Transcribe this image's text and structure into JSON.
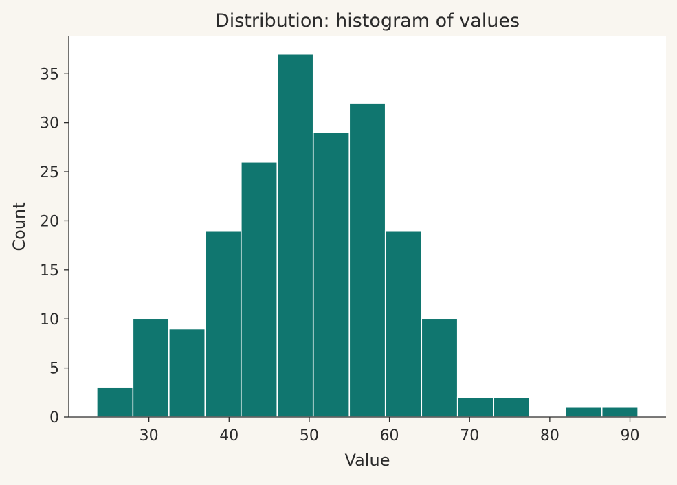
{
  "chart_data": {
    "type": "bar",
    "subtype": "histogram",
    "title": "Distribution: histogram of values",
    "xlabel": "Value",
    "ylabel": "Count",
    "xlim": [
      20.0,
      94.5
    ],
    "ylim": [
      0,
      38.8
    ],
    "xticks": [
      30,
      40,
      50,
      60,
      70,
      80,
      90
    ],
    "yticks": [
      0,
      5,
      10,
      15,
      20,
      25,
      30,
      35
    ],
    "bins": [
      {
        "start": 23.5,
        "end": 28.0,
        "count": 3
      },
      {
        "start": 28.0,
        "end": 32.5,
        "count": 10
      },
      {
        "start": 32.5,
        "end": 37.0,
        "count": 9
      },
      {
        "start": 37.0,
        "end": 41.5,
        "count": 19
      },
      {
        "start": 41.5,
        "end": 46.0,
        "count": 26
      },
      {
        "start": 46.0,
        "end": 50.5,
        "count": 37
      },
      {
        "start": 50.5,
        "end": 55.0,
        "count": 29
      },
      {
        "start": 55.0,
        "end": 59.5,
        "count": 32
      },
      {
        "start": 59.5,
        "end": 64.0,
        "count": 19
      },
      {
        "start": 64.0,
        "end": 68.5,
        "count": 10
      },
      {
        "start": 68.5,
        "end": 73.0,
        "count": 2
      },
      {
        "start": 73.0,
        "end": 77.5,
        "count": 2
      },
      {
        "start": 77.5,
        "end": 82.0,
        "count": 0
      },
      {
        "start": 82.0,
        "end": 86.5,
        "count": 1
      },
      {
        "start": 86.5,
        "end": 91.0,
        "count": 1
      }
    ],
    "grid": false,
    "colors": {
      "bar": "#10766f",
      "bar_edge": "#ffffff",
      "plot_background": "#ffffff",
      "page_background": "#f9f6f0",
      "axis": "#2b2b2b"
    }
  }
}
